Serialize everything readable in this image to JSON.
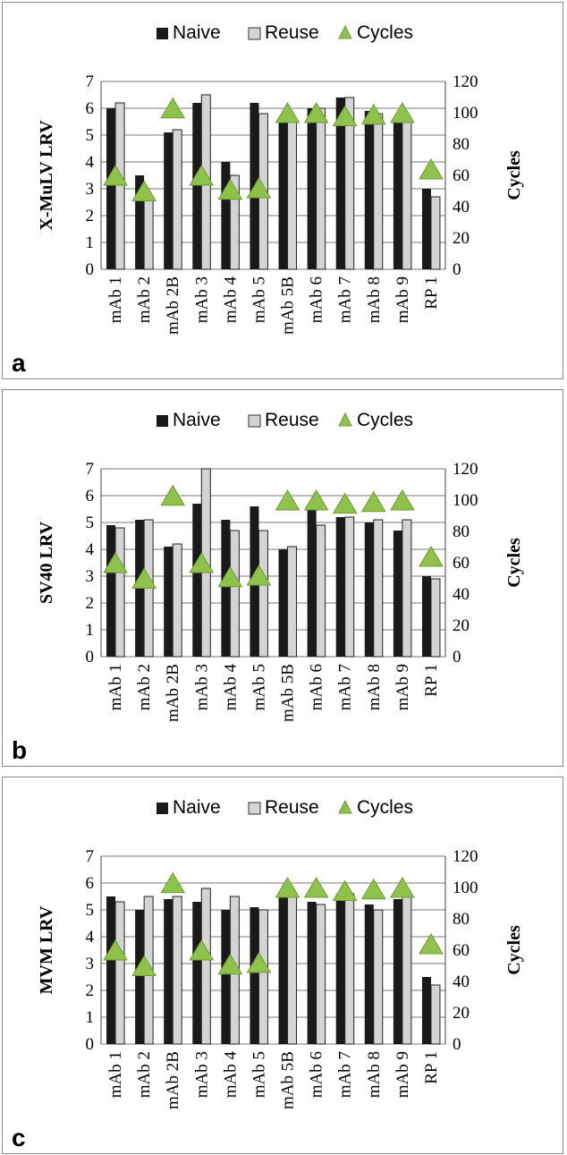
{
  "colors": {
    "naive": "#1a1a1a",
    "reuse": "#d4d4d4",
    "cycles": "#8fc24a",
    "grid": "#7a7a7a"
  },
  "legend": {
    "naive": "Naive",
    "reuse": "Reuse",
    "cycles": "Cycles"
  },
  "chart_data": [
    {
      "panel_label": "a",
      "type": "bar",
      "ylabel": "X-MuLV LRV",
      "y2label": "Cycles",
      "ylim": [
        0,
        7
      ],
      "y2lim": [
        0,
        120
      ],
      "yticks": [
        "0",
        "1",
        "2",
        "3",
        "4",
        "5",
        "6",
        "7"
      ],
      "y2ticks": [
        "0",
        "20",
        "40",
        "60",
        "80",
        "100",
        "120"
      ],
      "grid": true,
      "legend_position": "top",
      "categories": [
        "mAb 1",
        "mAb 2",
        "mAb 2B",
        "mAb 3",
        "mAb 4",
        "mAb 5",
        "mAb 5B",
        "mAb 6",
        "mAb 7",
        "mAb 8",
        "mAb 9",
        "RP 1"
      ],
      "series": [
        {
          "name": "Naive",
          "type": "bar",
          "axis": "left",
          "values": [
            6.0,
            3.5,
            5.1,
            6.2,
            4.0,
            6.2,
            5.5,
            6.0,
            6.4,
            5.9,
            5.6,
            3.0
          ]
        },
        {
          "name": "Reuse",
          "type": "bar",
          "axis": "left",
          "values": [
            6.2,
            2.6,
            5.2,
            6.5,
            3.5,
            5.8,
            5.5,
            6.0,
            6.4,
            5.8,
            5.6,
            2.7
          ]
        },
        {
          "name": "Cycles",
          "type": "scatter",
          "axis": "right",
          "values": [
            60,
            50,
            103,
            60,
            51,
            52,
            100,
            100,
            98,
            99,
            100,
            64
          ]
        }
      ]
    },
    {
      "panel_label": "b",
      "type": "bar",
      "ylabel": "SV40 LRV",
      "y2label": "Cycles",
      "ylim": [
        0,
        7
      ],
      "y2lim": [
        0,
        120
      ],
      "yticks": [
        "0",
        "1",
        "2",
        "3",
        "4",
        "5",
        "6",
        "7"
      ],
      "y2ticks": [
        "0",
        "20",
        "40",
        "60",
        "80",
        "100",
        "120"
      ],
      "grid": true,
      "legend_position": "top",
      "categories": [
        "mAb 1",
        "mAb 2",
        "mAb 2B",
        "mAb 3",
        "mAb 4",
        "mAb 5",
        "mAb 5B",
        "mAb 6",
        "mAb 7",
        "mAb 8",
        "mAb 9",
        "RP 1"
      ],
      "series": [
        {
          "name": "Naive",
          "type": "bar",
          "axis": "left",
          "values": [
            4.9,
            5.1,
            4.1,
            5.7,
            5.1,
            5.6,
            4.0,
            5.5,
            5.2,
            5.0,
            4.7,
            3.0
          ]
        },
        {
          "name": "Reuse",
          "type": "bar",
          "axis": "left",
          "values": [
            4.8,
            5.1,
            4.2,
            7.0,
            4.7,
            4.7,
            4.1,
            4.9,
            5.2,
            5.1,
            5.1,
            2.9
          ]
        },
        {
          "name": "Cycles",
          "type": "scatter",
          "axis": "right",
          "values": [
            60,
            50,
            103,
            60,
            51,
            52,
            100,
            100,
            98,
            99,
            100,
            64
          ]
        }
      ]
    },
    {
      "panel_label": "c",
      "type": "bar",
      "ylabel": "MVM LRV",
      "y2label": "Cycles",
      "ylim": [
        0,
        7
      ],
      "y2lim": [
        0,
        120
      ],
      "yticks": [
        "0",
        "1",
        "2",
        "3",
        "4",
        "5",
        "6",
        "7"
      ],
      "y2ticks": [
        "0",
        "20",
        "40",
        "60",
        "80",
        "100",
        "120"
      ],
      "grid": true,
      "legend_position": "top",
      "categories": [
        "mAb 1",
        "mAb 2",
        "mAb 2B",
        "mAb 3",
        "mAb 4",
        "mAb 5",
        "mAb 5B",
        "mAb 6",
        "mAb 7",
        "mAb 8",
        "mAb 9",
        "RP 1"
      ],
      "series": [
        {
          "name": "Naive",
          "type": "bar",
          "axis": "left",
          "values": [
            5.5,
            5.0,
            5.4,
            5.3,
            5.0,
            5.1,
            5.6,
            5.3,
            5.6,
            5.2,
            5.4,
            2.5
          ]
        },
        {
          "name": "Reuse",
          "type": "bar",
          "axis": "left",
          "values": [
            5.3,
            5.5,
            5.5,
            5.8,
            5.5,
            5.0,
            5.6,
            5.2,
            5.6,
            5.0,
            5.5,
            2.2
          ]
        },
        {
          "name": "Cycles",
          "type": "scatter",
          "axis": "right",
          "values": [
            60,
            50,
            103,
            60,
            51,
            52,
            100,
            100,
            98,
            99,
            100,
            64
          ]
        }
      ]
    }
  ]
}
